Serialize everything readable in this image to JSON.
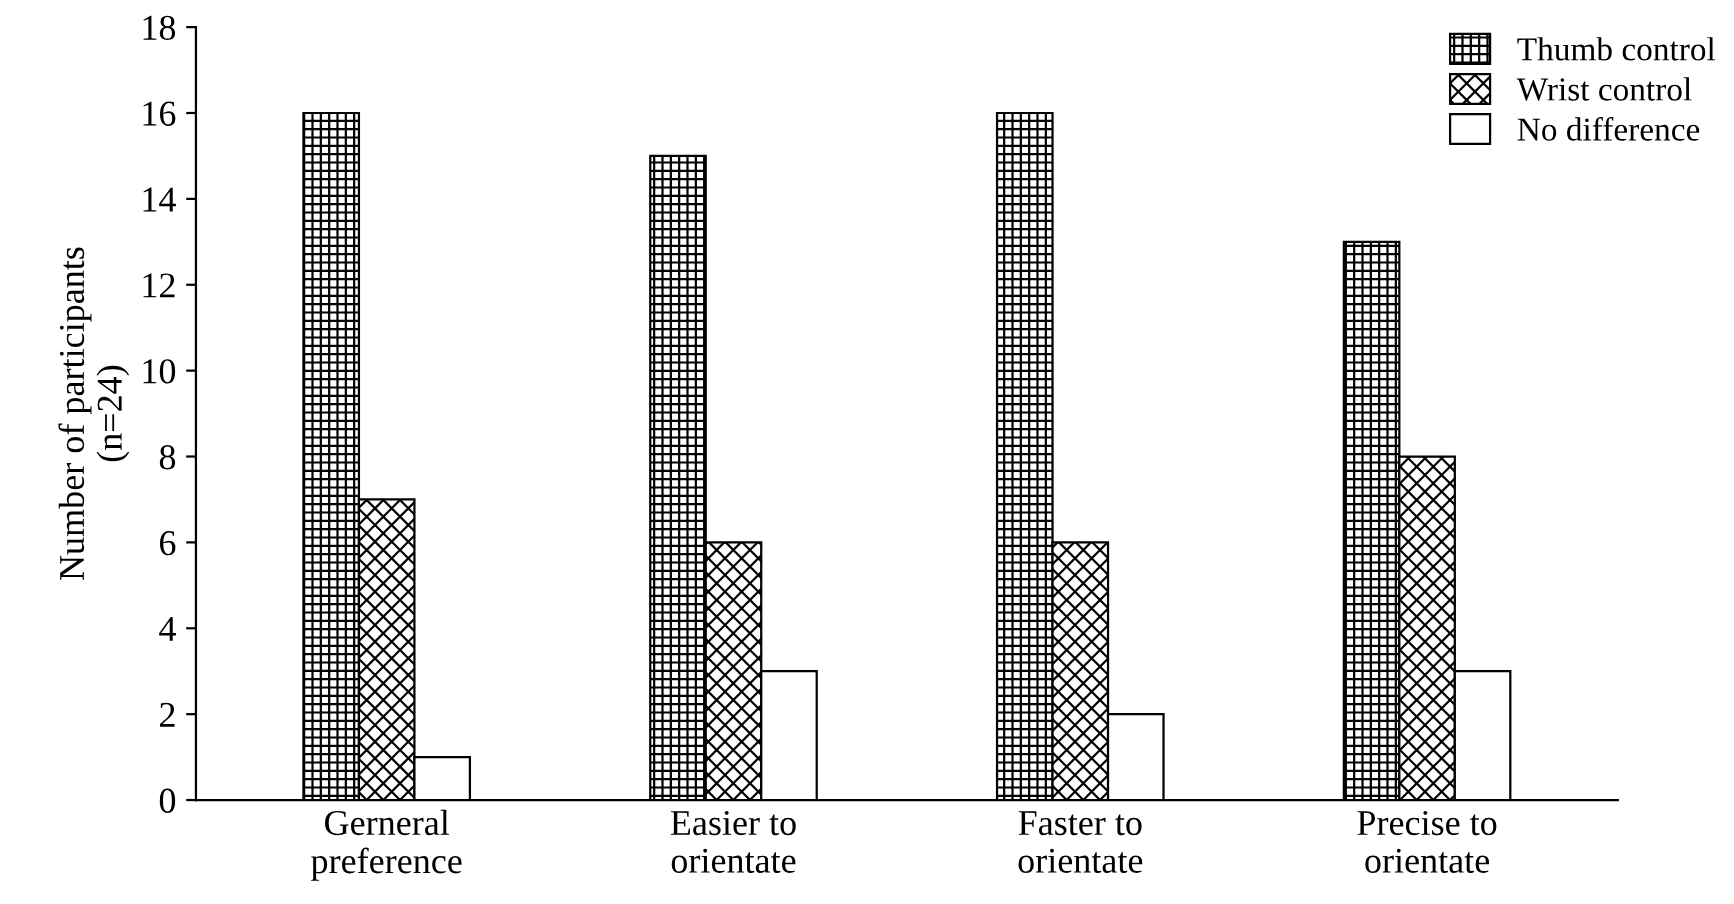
{
  "chart_data": {
    "type": "bar",
    "ylabel": "Number of participants\n(n=24)",
    "categories": [
      "Gerneral\npreference",
      "Easier to\norientate",
      "Faster to\norientate",
      "Precise to\norientate"
    ],
    "series": [
      {
        "name": "Thumb control",
        "color": "#000000",
        "values": [
          16,
          15,
          16,
          13
        ]
      },
      {
        "name": "Wrist control",
        "color": "#000000",
        "values": [
          7,
          6,
          6,
          8
        ]
      },
      {
        "name": "No difference",
        "color": "#ffffff",
        "values": [
          1,
          3,
          2,
          3
        ]
      }
    ],
    "ylim": [
      0,
      18
    ],
    "yticks": [
      0,
      2,
      4,
      6,
      8,
      10,
      12,
      14,
      16,
      18
    ],
    "grid": false,
    "legend": "top right"
  }
}
